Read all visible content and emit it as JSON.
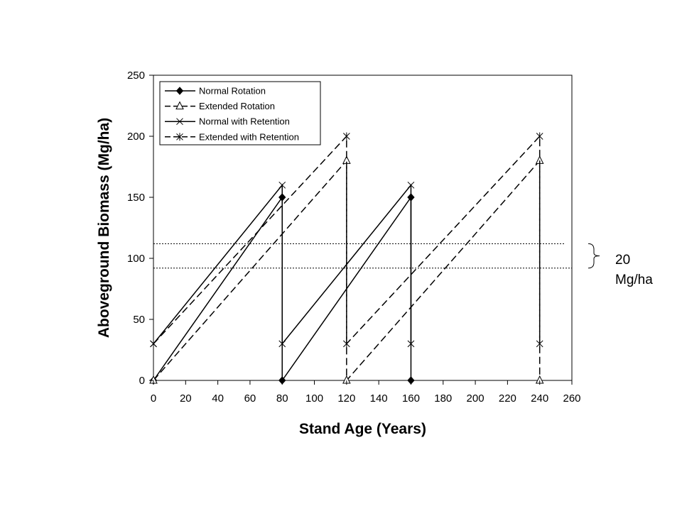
{
  "chart_data": {
    "type": "line",
    "title": "",
    "xlabel": "Stand Age (Years)",
    "ylabel": "Aboveground Biomass (Mg/ha)",
    "xlim": [
      0,
      260
    ],
    "ylim": [
      0,
      250
    ],
    "xticks": [
      0,
      20,
      40,
      60,
      80,
      100,
      120,
      140,
      160,
      180,
      200,
      220,
      240,
      260
    ],
    "yticks": [
      0,
      50,
      100,
      150,
      200,
      250
    ],
    "grid": false,
    "legend_position": "top-left",
    "series": [
      {
        "name": "Normal Rotation",
        "marker": "diamond",
        "line_style": "solid",
        "points": [
          [
            0,
            0
          ],
          [
            80,
            150
          ],
          [
            80,
            0
          ],
          [
            160,
            150
          ],
          [
            160,
            0
          ]
        ]
      },
      {
        "name": "Extended Rotation",
        "marker": "triangle",
        "line_style": "dashed",
        "points": [
          [
            0,
            0
          ],
          [
            120,
            180
          ],
          [
            120,
            0
          ],
          [
            240,
            180
          ],
          [
            240,
            0
          ]
        ]
      },
      {
        "name": "Normal with Retention",
        "marker": "x",
        "line_style": "solid",
        "points": [
          [
            0,
            30
          ],
          [
            80,
            160
          ],
          [
            80,
            30
          ],
          [
            160,
            160
          ],
          [
            160,
            30
          ]
        ]
      },
      {
        "name": "Extended with Retention",
        "marker": "asterisk",
        "line_style": "dashed",
        "points": [
          [
            0,
            30
          ],
          [
            120,
            200
          ],
          [
            120,
            30
          ],
          [
            240,
            200
          ],
          [
            240,
            30
          ]
        ]
      }
    ],
    "reference_lines": [
      {
        "y": 112,
        "x_range": [
          0,
          256
        ],
        "style": "dotted"
      },
      {
        "y": 92,
        "x_range": [
          0,
          260
        ],
        "style": "dotted"
      }
    ],
    "annotation": {
      "lines": [
        "20",
        "Mg/ha"
      ],
      "brace_y_range": [
        92,
        112
      ]
    }
  }
}
